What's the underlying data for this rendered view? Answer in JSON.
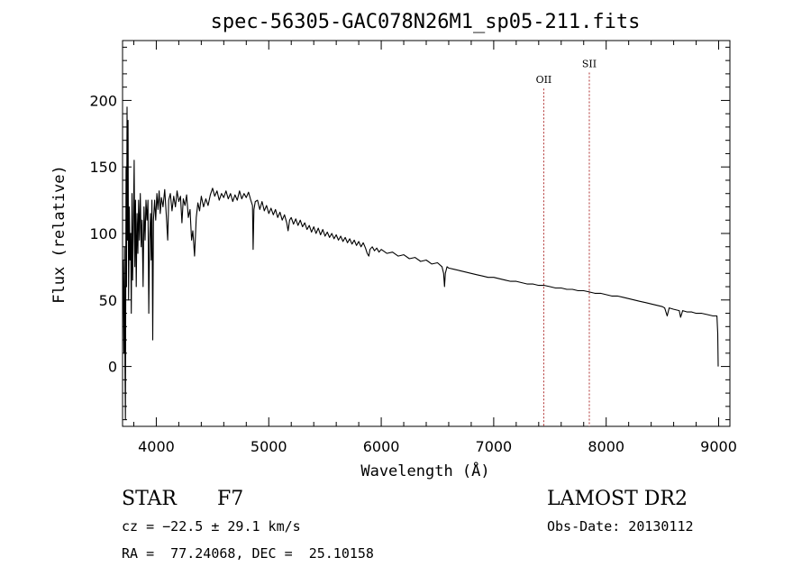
{
  "chart_data": {
    "type": "line",
    "title": "spec-56305-GAC078N26M1_sp05-211.fits",
    "xlabel": "Wavelength (Å)",
    "ylabel": "Flux (relative)",
    "xlim": [
      3700,
      9100
    ],
    "ylim": [
      -45,
      245
    ],
    "x_ticks": [
      4000,
      5000,
      6000,
      7000,
      8000,
      9000
    ],
    "y_ticks": [
      0,
      50,
      100,
      150,
      200
    ],
    "grid": false,
    "line_color": "#000000",
    "marker_color": "#b03030",
    "line_markers": [
      {
        "label": "OII",
        "x": 7445,
        "label_y": 213
      },
      {
        "label": "SII",
        "x": 7850,
        "label_y": 225
      }
    ],
    "series": [
      {
        "values": [
          [
            3705,
            80
          ],
          [
            3712,
            10
          ],
          [
            3718,
            90
          ],
          [
            3722,
            0
          ],
          [
            3726,
            -40
          ],
          [
            3731,
            150
          ],
          [
            3735,
            60
          ],
          [
            3740,
            195
          ],
          [
            3745,
            95
          ],
          [
            3749,
            185
          ],
          [
            3754,
            50
          ],
          [
            3760,
            120
          ],
          [
            3766,
            80
          ],
          [
            3772,
            100
          ],
          [
            3778,
            40
          ],
          [
            3784,
            130
          ],
          [
            3790,
            65
          ],
          [
            3797,
            110
          ],
          [
            3803,
            155
          ],
          [
            3809,
            75
          ],
          [
            3815,
            125
          ],
          [
            3822,
            60
          ],
          [
            3829,
            115
          ],
          [
            3836,
            85
          ],
          [
            3843,
            125
          ],
          [
            3850,
            95
          ],
          [
            3858,
            130
          ],
          [
            3866,
            90
          ],
          [
            3874,
            110
          ],
          [
            3883,
            60
          ],
          [
            3891,
            120
          ],
          [
            3900,
            95
          ],
          [
            3908,
            125
          ],
          [
            3917,
            110
          ],
          [
            3926,
            125
          ],
          [
            3933,
            40
          ],
          [
            3940,
            95
          ],
          [
            3948,
            115
          ],
          [
            3955,
            80
          ],
          [
            3961,
            125
          ],
          [
            3968,
            20
          ],
          [
            3975,
            110
          ],
          [
            3985,
            125
          ],
          [
            3995,
            110
          ],
          [
            4005,
            130
          ],
          [
            4015,
            118
          ],
          [
            4025,
            132
          ],
          [
            4035,
            115
          ],
          [
            4045,
            127
          ],
          [
            4060,
            120
          ],
          [
            4075,
            133
          ],
          [
            4090,
            112
          ],
          [
            4101,
            95
          ],
          [
            4110,
            125
          ],
          [
            4125,
            130
          ],
          [
            4140,
            117
          ],
          [
            4155,
            128
          ],
          [
            4170,
            120
          ],
          [
            4185,
            132
          ],
          [
            4200,
            124
          ],
          [
            4215,
            128
          ],
          [
            4228,
            108
          ],
          [
            4240,
            126
          ],
          [
            4255,
            121
          ],
          [
            4270,
            129
          ],
          [
            4285,
            112
          ],
          [
            4300,
            118
          ],
          [
            4314,
            95
          ],
          [
            4325,
            102
          ],
          [
            4340,
            83
          ],
          [
            4355,
            112
          ],
          [
            4370,
            123
          ],
          [
            4385,
            117
          ],
          [
            4400,
            128
          ],
          [
            4420,
            120
          ],
          [
            4440,
            126
          ],
          [
            4460,
            121
          ],
          [
            4480,
            129
          ],
          [
            4500,
            134
          ],
          [
            4520,
            128
          ],
          [
            4540,
            132
          ],
          [
            4560,
            125
          ],
          [
            4580,
            130
          ],
          [
            4600,
            127
          ],
          [
            4620,
            132
          ],
          [
            4640,
            126
          ],
          [
            4660,
            130
          ],
          [
            4680,
            124
          ],
          [
            4700,
            129
          ],
          [
            4720,
            125
          ],
          [
            4740,
            132
          ],
          [
            4760,
            126
          ],
          [
            4780,
            130
          ],
          [
            4800,
            127
          ],
          [
            4820,
            131
          ],
          [
            4840,
            125
          ],
          [
            4855,
            121
          ],
          [
            4861,
            88
          ],
          [
            4868,
            118
          ],
          [
            4880,
            124
          ],
          [
            4900,
            125
          ],
          [
            4920,
            118
          ],
          [
            4940,
            124
          ],
          [
            4960,
            117
          ],
          [
            4980,
            121
          ],
          [
            5000,
            115
          ],
          [
            5020,
            119
          ],
          [
            5040,
            114
          ],
          [
            5060,
            118
          ],
          [
            5080,
            112
          ],
          [
            5100,
            116
          ],
          [
            5120,
            110
          ],
          [
            5140,
            114
          ],
          [
            5160,
            108
          ],
          [
            5172,
            102
          ],
          [
            5185,
            110
          ],
          [
            5200,
            112
          ],
          [
            5220,
            107
          ],
          [
            5240,
            111
          ],
          [
            5260,
            106
          ],
          [
            5280,
            110
          ],
          [
            5300,
            105
          ],
          [
            5320,
            108
          ],
          [
            5340,
            103
          ],
          [
            5360,
            106
          ],
          [
            5380,
            101
          ],
          [
            5400,
            105
          ],
          [
            5420,
            100
          ],
          [
            5440,
            104
          ],
          [
            5460,
            99
          ],
          [
            5480,
            103
          ],
          [
            5500,
            98
          ],
          [
            5520,
            101
          ],
          [
            5540,
            97
          ],
          [
            5560,
            100
          ],
          [
            5580,
            96
          ],
          [
            5600,
            99
          ],
          [
            5620,
            95
          ],
          [
            5640,
            98
          ],
          [
            5660,
            94
          ],
          [
            5680,
            97
          ],
          [
            5700,
            93
          ],
          [
            5720,
            96
          ],
          [
            5740,
            92
          ],
          [
            5760,
            95
          ],
          [
            5780,
            91
          ],
          [
            5800,
            94
          ],
          [
            5820,
            90
          ],
          [
            5840,
            93
          ],
          [
            5860,
            89
          ],
          [
            5875,
            85
          ],
          [
            5890,
            83
          ],
          [
            5900,
            88
          ],
          [
            5920,
            90
          ],
          [
            5940,
            87
          ],
          [
            5960,
            89
          ],
          [
            5980,
            86
          ],
          [
            6000,
            88
          ],
          [
            6050,
            85
          ],
          [
            6100,
            86
          ],
          [
            6150,
            83
          ],
          [
            6200,
            84
          ],
          [
            6250,
            81
          ],
          [
            6300,
            82
          ],
          [
            6350,
            79
          ],
          [
            6400,
            80
          ],
          [
            6450,
            77
          ],
          [
            6500,
            78
          ],
          [
            6540,
            75
          ],
          [
            6555,
            70
          ],
          [
            6563,
            60
          ],
          [
            6570,
            70
          ],
          [
            6585,
            75
          ],
          [
            6600,
            74
          ],
          [
            6650,
            73
          ],
          [
            6700,
            72
          ],
          [
            6750,
            71
          ],
          [
            6800,
            70
          ],
          [
            6850,
            69
          ],
          [
            6900,
            68
          ],
          [
            6950,
            67
          ],
          [
            7000,
            67
          ],
          [
            7050,
            66
          ],
          [
            7100,
            65
          ],
          [
            7150,
            64
          ],
          [
            7200,
            64
          ],
          [
            7250,
            63
          ],
          [
            7300,
            62
          ],
          [
            7350,
            62
          ],
          [
            7400,
            61
          ],
          [
            7450,
            61
          ],
          [
            7500,
            60
          ],
          [
            7550,
            59
          ],
          [
            7600,
            59
          ],
          [
            7650,
            58
          ],
          [
            7700,
            58
          ],
          [
            7750,
            57
          ],
          [
            7800,
            57
          ],
          [
            7850,
            56
          ],
          [
            7900,
            55
          ],
          [
            7950,
            55
          ],
          [
            8000,
            54
          ],
          [
            8050,
            53
          ],
          [
            8100,
            53
          ],
          [
            8150,
            52
          ],
          [
            8200,
            51
          ],
          [
            8250,
            50
          ],
          [
            8300,
            49
          ],
          [
            8350,
            48
          ],
          [
            8400,
            47
          ],
          [
            8450,
            46
          ],
          [
            8500,
            45
          ],
          [
            8520,
            44
          ],
          [
            8542,
            38
          ],
          [
            8560,
            44
          ],
          [
            8600,
            43
          ],
          [
            8650,
            42
          ],
          [
            8662,
            37
          ],
          [
            8680,
            42
          ],
          [
            8720,
            41
          ],
          [
            8760,
            41
          ],
          [
            8800,
            40
          ],
          [
            8850,
            40
          ],
          [
            8900,
            39
          ],
          [
            8950,
            38
          ],
          [
            8985,
            38
          ],
          [
            8992,
            25
          ],
          [
            8996,
            0
          ]
        ]
      }
    ]
  },
  "info": {
    "object_class": "STAR",
    "subclass": "F7",
    "survey": "LAMOST DR2",
    "redshift": "cz = −22.5 ± 29.1 km/s",
    "obs_date": "Obs-Date: 20130112",
    "coords": "RA =  77.24068, DEC =  25.10158"
  }
}
